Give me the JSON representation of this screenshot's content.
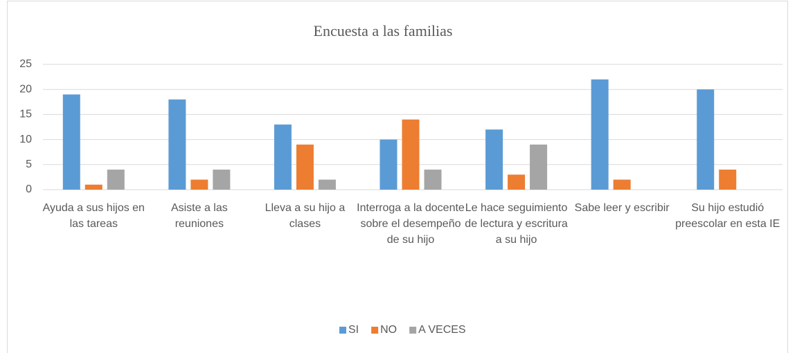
{
  "chart_data": {
    "type": "bar",
    "title": "Encuesta a las familias",
    "categories": [
      "Ayuda a sus hijos en las tareas",
      "Asiste a las reuniones",
      "Lleva a su hijo a clases",
      "Interroga a la docente sobre el desempeño de su hijo",
      "Le hace seguimiento de lectura y escritura a su hijo",
      "Sabe leer y escribir",
      "Su hijo estudió preescolar en esta IE"
    ],
    "series": [
      {
        "name": "SI",
        "color": "#5b9bd5",
        "values": [
          19,
          18,
          13,
          10,
          12,
          22,
          20
        ]
      },
      {
        "name": "NO",
        "color": "#ed7d31",
        "values": [
          1,
          2,
          9,
          14,
          3,
          2,
          4
        ]
      },
      {
        "name": "A VECES",
        "color": "#a5a5a5",
        "values": [
          4,
          4,
          2,
          4,
          9,
          0,
          0
        ]
      }
    ],
    "ylim": [
      0,
      25
    ],
    "yticks": [
      0,
      5,
      10,
      15,
      20,
      25
    ],
    "grid": true,
    "legend": "bottom"
  }
}
